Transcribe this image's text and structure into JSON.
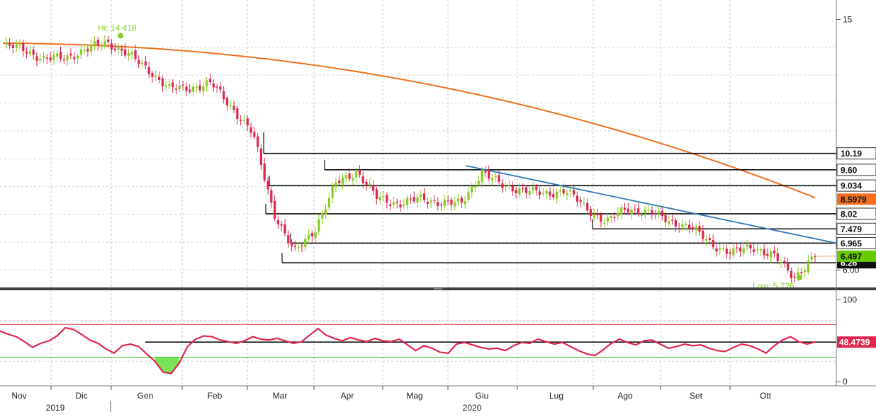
{
  "chart_data": [
    {
      "type": "candlestick",
      "panel": "price",
      "yticks": [
        15,
        6.0
      ],
      "ytick_labels": [
        "15",
        "6.00"
      ],
      "y_range": [
        5.4,
        15.7
      ],
      "annotations": {
        "high": "Hi: 14.418",
        "low": "Low: 5.726"
      },
      "high_value": 14.418,
      "low_value": 5.726,
      "levels": [
        {
          "value": 10.19,
          "label": "10.19",
          "start_month": "Mar",
          "box": "white"
        },
        {
          "value": 9.6,
          "label": "9.60",
          "start_month": "Apr",
          "box": "white"
        },
        {
          "value": 9.034,
          "label": "9.034",
          "start_month": "Mar",
          "box": "white"
        },
        {
          "value": 8.02,
          "label": "8.02",
          "start_month": "Mar",
          "box": "white"
        },
        {
          "value": 7.479,
          "label": "7.479",
          "start_month": "Ago",
          "box": "white"
        },
        {
          "value": 6.965,
          "label": "6.965",
          "start_month": "Mar",
          "box": "white"
        },
        {
          "value": 6.26,
          "label": "6.26",
          "start_month": "Mar",
          "box": "black"
        }
      ],
      "moving_average": {
        "color": "#f07020",
        "last_value": 8.5979,
        "label": "8.5979"
      },
      "last_price": {
        "value": 6.497,
        "label": "6.497",
        "color": "#66cc00"
      },
      "trendline": {
        "color": "#2f78b8",
        "from": {
          "month": "Giu",
          "value": 9.75
        },
        "to": {
          "month": "Ott-end",
          "value": 6.965
        }
      },
      "series_close": [
        {
          "m": "Nov",
          "v": 14.05
        },
        {
          "m": "Nov+",
          "v": 13.95
        },
        {
          "m": "Nov++",
          "v": 13.55
        },
        {
          "m": "Dic",
          "v": 13.65
        },
        {
          "m": "Dic+",
          "v": 13.9
        },
        {
          "m": "Dic++",
          "v": 14.2
        },
        {
          "m": "Gen",
          "v": 13.75
        },
        {
          "m": "Gen+",
          "v": 13.2
        },
        {
          "m": "Gen++",
          "v": 12.5
        },
        {
          "m": "Feb",
          "v": 12.55
        },
        {
          "m": "Feb+",
          "v": 12.7
        },
        {
          "m": "Feb++",
          "v": 11.85
        },
        {
          "m": "Mar",
          "v": 10.9
        },
        {
          "m": "Mar+",
          "v": 8.1
        },
        {
          "m": "Mar++",
          "v": 6.6
        },
        {
          "m": "Mar+++",
          "v": 7.5
        },
        {
          "m": "Apr-",
          "v": 9.1
        },
        {
          "m": "Apr",
          "v": 9.55
        },
        {
          "m": "Apr+",
          "v": 8.55
        },
        {
          "m": "Apr++",
          "v": 8.4
        },
        {
          "m": "Mag",
          "v": 8.55
        },
        {
          "m": "Mag+",
          "v": 8.45
        },
        {
          "m": "Mag++",
          "v": 8.35
        },
        {
          "m": "Giu",
          "v": 9.55
        },
        {
          "m": "Giu+",
          "v": 9.0
        },
        {
          "m": "Giu++",
          "v": 8.9
        },
        {
          "m": "Lug",
          "v": 8.7
        },
        {
          "m": "Lug+",
          "v": 8.9
        },
        {
          "m": "Lug++",
          "v": 8.2
        },
        {
          "m": "Ago-",
          "v": 7.75
        },
        {
          "m": "Ago",
          "v": 8.2
        },
        {
          "m": "Ago+",
          "v": 8.1
        },
        {
          "m": "Ago++",
          "v": 7.75
        },
        {
          "m": "Set",
          "v": 7.55
        },
        {
          "m": "Set+",
          "v": 6.95
        },
        {
          "m": "Set++",
          "v": 6.6
        },
        {
          "m": "Ott",
          "v": 6.85
        },
        {
          "m": "Ott+",
          "v": 6.5
        },
        {
          "m": "Ott++",
          "v": 5.75
        },
        {
          "m": "Ott+++",
          "v": 6.497
        }
      ]
    },
    {
      "type": "line",
      "panel": "oscillator",
      "yticks": [
        100,
        0
      ],
      "ytick_labels": [
        "100",
        "0"
      ],
      "y_range": [
        -5,
        110
      ],
      "upper_band": 70,
      "lower_band": 30,
      "reference_value": 48.4739,
      "last_value": 48.4739,
      "last_label": "48.4739",
      "values": [
        62,
        58,
        55,
        49,
        42,
        47,
        50,
        56,
        66,
        64,
        58,
        51,
        47,
        40,
        35,
        44,
        46,
        43,
        34,
        25,
        12,
        10,
        23,
        43,
        52,
        56,
        55,
        51,
        49,
        47,
        50,
        55,
        52,
        51,
        53,
        50,
        47,
        49,
        57,
        65,
        57,
        53,
        50,
        54,
        51,
        49,
        53,
        50,
        49,
        52,
        45,
        38,
        44,
        41,
        36,
        35,
        46,
        48,
        45,
        42,
        40,
        41,
        38,
        44,
        48,
        47,
        52,
        49,
        46,
        48,
        43,
        38,
        34,
        32,
        39,
        47,
        52,
        48,
        45,
        50,
        51,
        46,
        41,
        43,
        46,
        44,
        45,
        41,
        38,
        37,
        42,
        46,
        44,
        40,
        35,
        44,
        51,
        55,
        49,
        46,
        48.4739
      ]
    }
  ],
  "xaxis": {
    "months": [
      "Nov",
      "Dic",
      "Gen",
      "Feb",
      "Mar",
      "Apr",
      "Mag",
      "Giu",
      "Lug",
      "Ago",
      "Set",
      "Ott"
    ],
    "years": [
      "2019",
      "2020"
    ]
  },
  "colors": {
    "up_candle": "#88cc22",
    "down_candle": "#e0264e",
    "moving_average": "#f07020",
    "trendline": "#2f78b8",
    "oscillator": "#e0264e",
    "oversold_fill": "#55dd33",
    "upper_band": "#d03030",
    "lower_band": "#33bb33",
    "annotation": "#88cc22"
  }
}
